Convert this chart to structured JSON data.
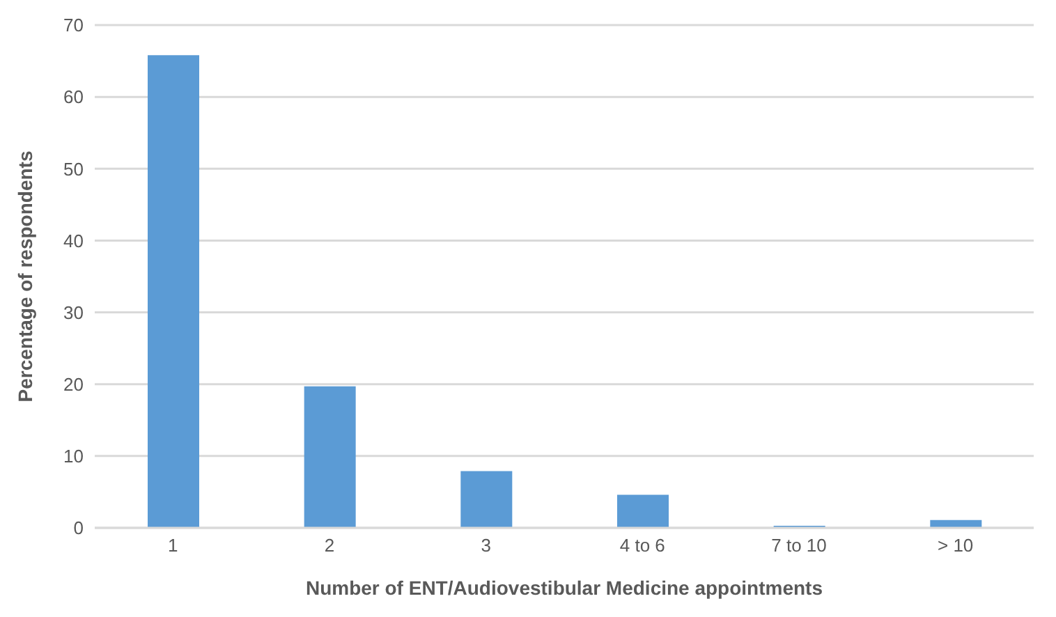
{
  "chart_data": {
    "type": "bar",
    "xlabel": "Number of ENT/Audiovestibular Medicine appointments",
    "ylabel": "Percentage of respondents",
    "categories": [
      "1",
      "2",
      "3",
      "4 to 6",
      "7 to 10",
      "> 10"
    ],
    "values": [
      65.8,
      19.7,
      7.9,
      4.6,
      0.3,
      1.1
    ],
    "color": "#5b9bd5",
    "ylim": [
      0,
      70
    ],
    "yticks": [
      0,
      10,
      20,
      30,
      40,
      50,
      60,
      70
    ],
    "grid": "y"
  }
}
